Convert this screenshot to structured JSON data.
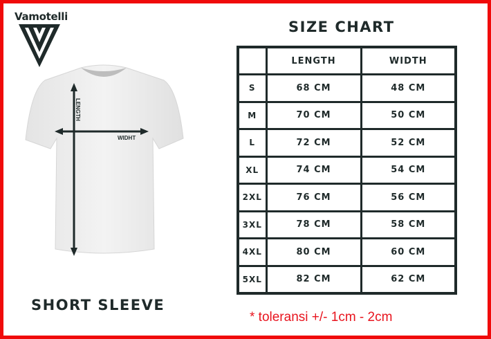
{
  "brand": {
    "name": "Vamotelli",
    "logo_icon": "triple-v-triangle-logo"
  },
  "garment": {
    "title": "SHORT SLEEVE",
    "length_label": "LENGTH",
    "width_label": "WIDHT"
  },
  "size_chart": {
    "title": "SIZE CHART",
    "headers": [
      "",
      "LENGTH",
      "WIDTH"
    ],
    "rows": [
      {
        "size": "S",
        "length": "68 CM",
        "width": "48 CM"
      },
      {
        "size": "M",
        "length": "70 CM",
        "width": "50 CM"
      },
      {
        "size": "L",
        "length": "72 CM",
        "width": "52 CM"
      },
      {
        "size": "XL",
        "length": "74 CM",
        "width": "54 CM"
      },
      {
        "size": "2XL",
        "length": "76 CM",
        "width": "56 CM"
      },
      {
        "size": "3XL",
        "length": "78 CM",
        "width": "58 CM"
      },
      {
        "size": "4XL",
        "length": "80 CM",
        "width": "60 CM"
      },
      {
        "size": "5XL",
        "length": "82 CM",
        "width": "62 CM"
      }
    ],
    "note": "* toleransi +/- 1cm - 2cm"
  },
  "colors": {
    "frame": "#f00a0a",
    "text": "#1f2a2a",
    "note": "#e8141e"
  }
}
